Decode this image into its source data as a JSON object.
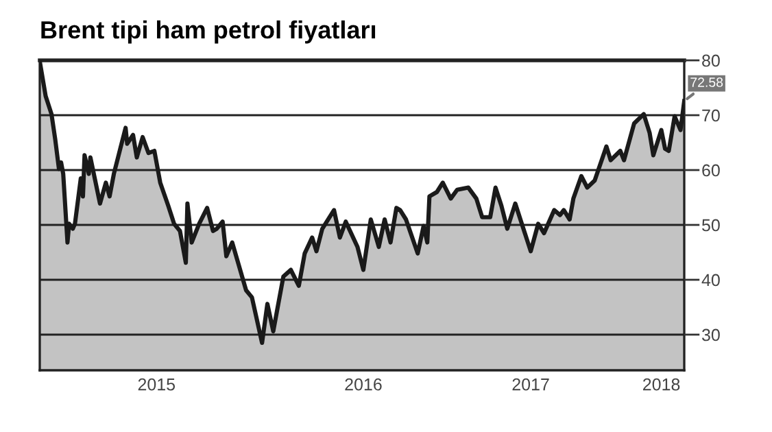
{
  "chart_data": {
    "type": "area",
    "title": "Brent tipi ham petrol fiyatları",
    "x": [
      "2014-11-10",
      "2014-11-21",
      "2014-12-02",
      "2014-12-09",
      "2014-12-16",
      "2014-12-20",
      "2014-12-24",
      "2015-01-01",
      "2015-01-04",
      "2015-01-11",
      "2015-01-15",
      "2015-01-26",
      "2015-01-30",
      "2015-02-02",
      "2015-02-10",
      "2015-02-13",
      "2015-03-03",
      "2015-03-14",
      "2015-03-21",
      "2015-03-29",
      "2015-04-09",
      "2015-04-20",
      "2015-04-23",
      "2015-05-04",
      "2015-05-11",
      "2015-05-22",
      "2015-06-02",
      "2015-06-13",
      "2015-06-24",
      "2015-07-09",
      "2015-07-20",
      "2015-07-31",
      "2015-08-11",
      "2015-08-14",
      "2015-08-22",
      "2015-09-05",
      "2015-09-20",
      "2015-10-01",
      "2015-10-08",
      "2015-10-19",
      "2015-10-26",
      "2015-11-06",
      "2015-12-02",
      "2015-12-13",
      "2016-01-01",
      "2016-01-11",
      "2016-01-22",
      "2016-01-29",
      "2016-02-10",
      "2016-02-24",
      "2016-03-10",
      "2016-03-21",
      "2016-04-04",
      "2016-04-12",
      "2016-04-23",
      "2016-05-15",
      "2016-05-26",
      "2016-06-06",
      "2016-06-28",
      "2016-07-09",
      "2016-07-23",
      "2016-08-07",
      "2016-08-18",
      "2016-08-29",
      "2016-09-09",
      "2016-09-16",
      "2016-09-27",
      "2016-10-19",
      "2016-10-30",
      "2016-11-06",
      "2016-11-10",
      "2016-11-24",
      "2016-12-05",
      "2016-12-20",
      "2017-01-01",
      "2017-01-22",
      "2017-02-06",
      "2017-02-17",
      "2017-03-04",
      "2017-03-14",
      "2017-03-25",
      "2017-04-05",
      "2017-04-20",
      "2017-05-01",
      "2017-05-19",
      "2017-06-02",
      "2017-06-13",
      "2017-07-02",
      "2017-07-13",
      "2017-07-20",
      "2017-07-31",
      "2017-08-07",
      "2017-08-22",
      "2017-09-02",
      "2017-09-16",
      "2017-10-08",
      "2017-10-16",
      "2017-11-03",
      "2017-11-10",
      "2017-11-29",
      "2017-12-17",
      "2017-12-28",
      "2018-01-04",
      "2018-01-19",
      "2018-01-26",
      "2018-02-02",
      "2018-02-13",
      "2018-02-24",
      "2018-03-03"
    ],
    "series": [
      {
        "color": "#1a1a1a",
        "values": [
          79.8,
          73.5,
          70.2,
          65.6,
          60.2,
          61.4,
          59.3,
          46.8,
          50.2,
          49.3,
          50.2,
          58.5,
          55.2,
          62.7,
          59.3,
          62.3,
          53.9,
          57.7,
          55.2,
          59.3,
          63.5,
          67.7,
          64.8,
          66.4,
          62.3,
          66.0,
          63.1,
          63.5,
          57.7,
          53.5,
          50.2,
          48.9,
          43.1,
          53.9,
          46.8,
          50.2,
          53.1,
          48.9,
          49.3,
          50.6,
          44.3,
          46.8,
          38.1,
          36.8,
          28.5,
          35.6,
          30.6,
          34.3,
          40.6,
          41.8,
          38.9,
          44.8,
          47.7,
          45.2,
          49.3,
          52.7,
          47.7,
          50.6,
          46.0,
          41.8,
          51.0,
          46.0,
          51.0,
          46.8,
          53.1,
          52.7,
          51.0,
          44.8,
          49.8,
          46.8,
          55.2,
          56.0,
          57.7,
          54.8,
          56.4,
          56.8,
          54.8,
          51.4,
          51.4,
          56.8,
          53.5,
          49.3,
          53.9,
          50.6,
          45.2,
          50.2,
          48.5,
          52.7,
          51.8,
          52.7,
          51.0,
          54.8,
          58.9,
          56.8,
          58.1,
          64.3,
          61.8,
          63.5,
          61.8,
          68.5,
          70.2,
          66.8,
          62.7,
          67.3,
          63.9,
          63.5,
          69.8,
          67.3,
          72.58
        ]
      }
    ],
    "ylim": [
      23.5,
      80
    ],
    "yticks": [
      30,
      40,
      50,
      60,
      70,
      80
    ],
    "xlim": [
      "2014-11-10",
      "2018-03-03"
    ],
    "xticks": [
      {
        "value": "2015-06-17",
        "label": "2015"
      },
      {
        "value": "2016-07-09",
        "label": "2016"
      },
      {
        "value": "2017-05-19",
        "label": "2017"
      },
      {
        "value": "2018-01-19",
        "label": "2018"
      }
    ],
    "grid": "y",
    "legend": false,
    "annotations": [
      {
        "text": "72.58",
        "x": "2018-03-03",
        "y": 72.58
      }
    ]
  }
}
